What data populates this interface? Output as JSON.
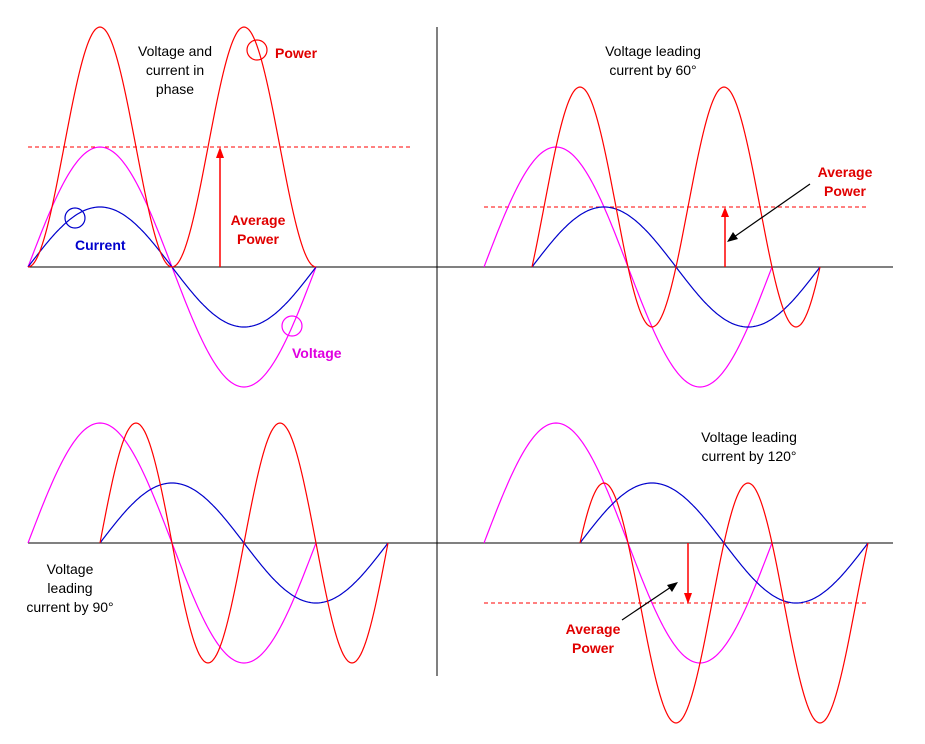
{
  "colors": {
    "voltage": "#ff00ff",
    "current": "#0000cc",
    "power": "#ff0000",
    "axis": "#000000",
    "label_red": "#e00000",
    "label_blue": "#0000cc",
    "label_magenta": "#e000e0"
  },
  "panels": [
    {
      "id": "in-phase",
      "phase_lead_deg": 0,
      "caption_lines": [
        "Voltage and",
        "current in",
        "phase"
      ],
      "labels": {
        "power": "Power",
        "current": "Current",
        "voltage": "Voltage",
        "average_power_lines": [
          "Average",
          "Power"
        ]
      }
    },
    {
      "id": "lead-60",
      "phase_lead_deg": 60,
      "caption_lines": [
        "Voltage leading",
        "current by 60°"
      ],
      "labels": {
        "average_power_lines": [
          "Average",
          "Power"
        ]
      }
    },
    {
      "id": "lead-90",
      "phase_lead_deg": 90,
      "caption_lines": [
        "Voltage",
        "leading",
        "current by 90°"
      ],
      "labels": {}
    },
    {
      "id": "lead-120",
      "phase_lead_deg": 120,
      "caption_lines": [
        "Voltage leading",
        "current by 120°"
      ],
      "labels": {
        "average_power_lines": [
          "Average",
          "Power"
        ]
      }
    }
  ]
}
